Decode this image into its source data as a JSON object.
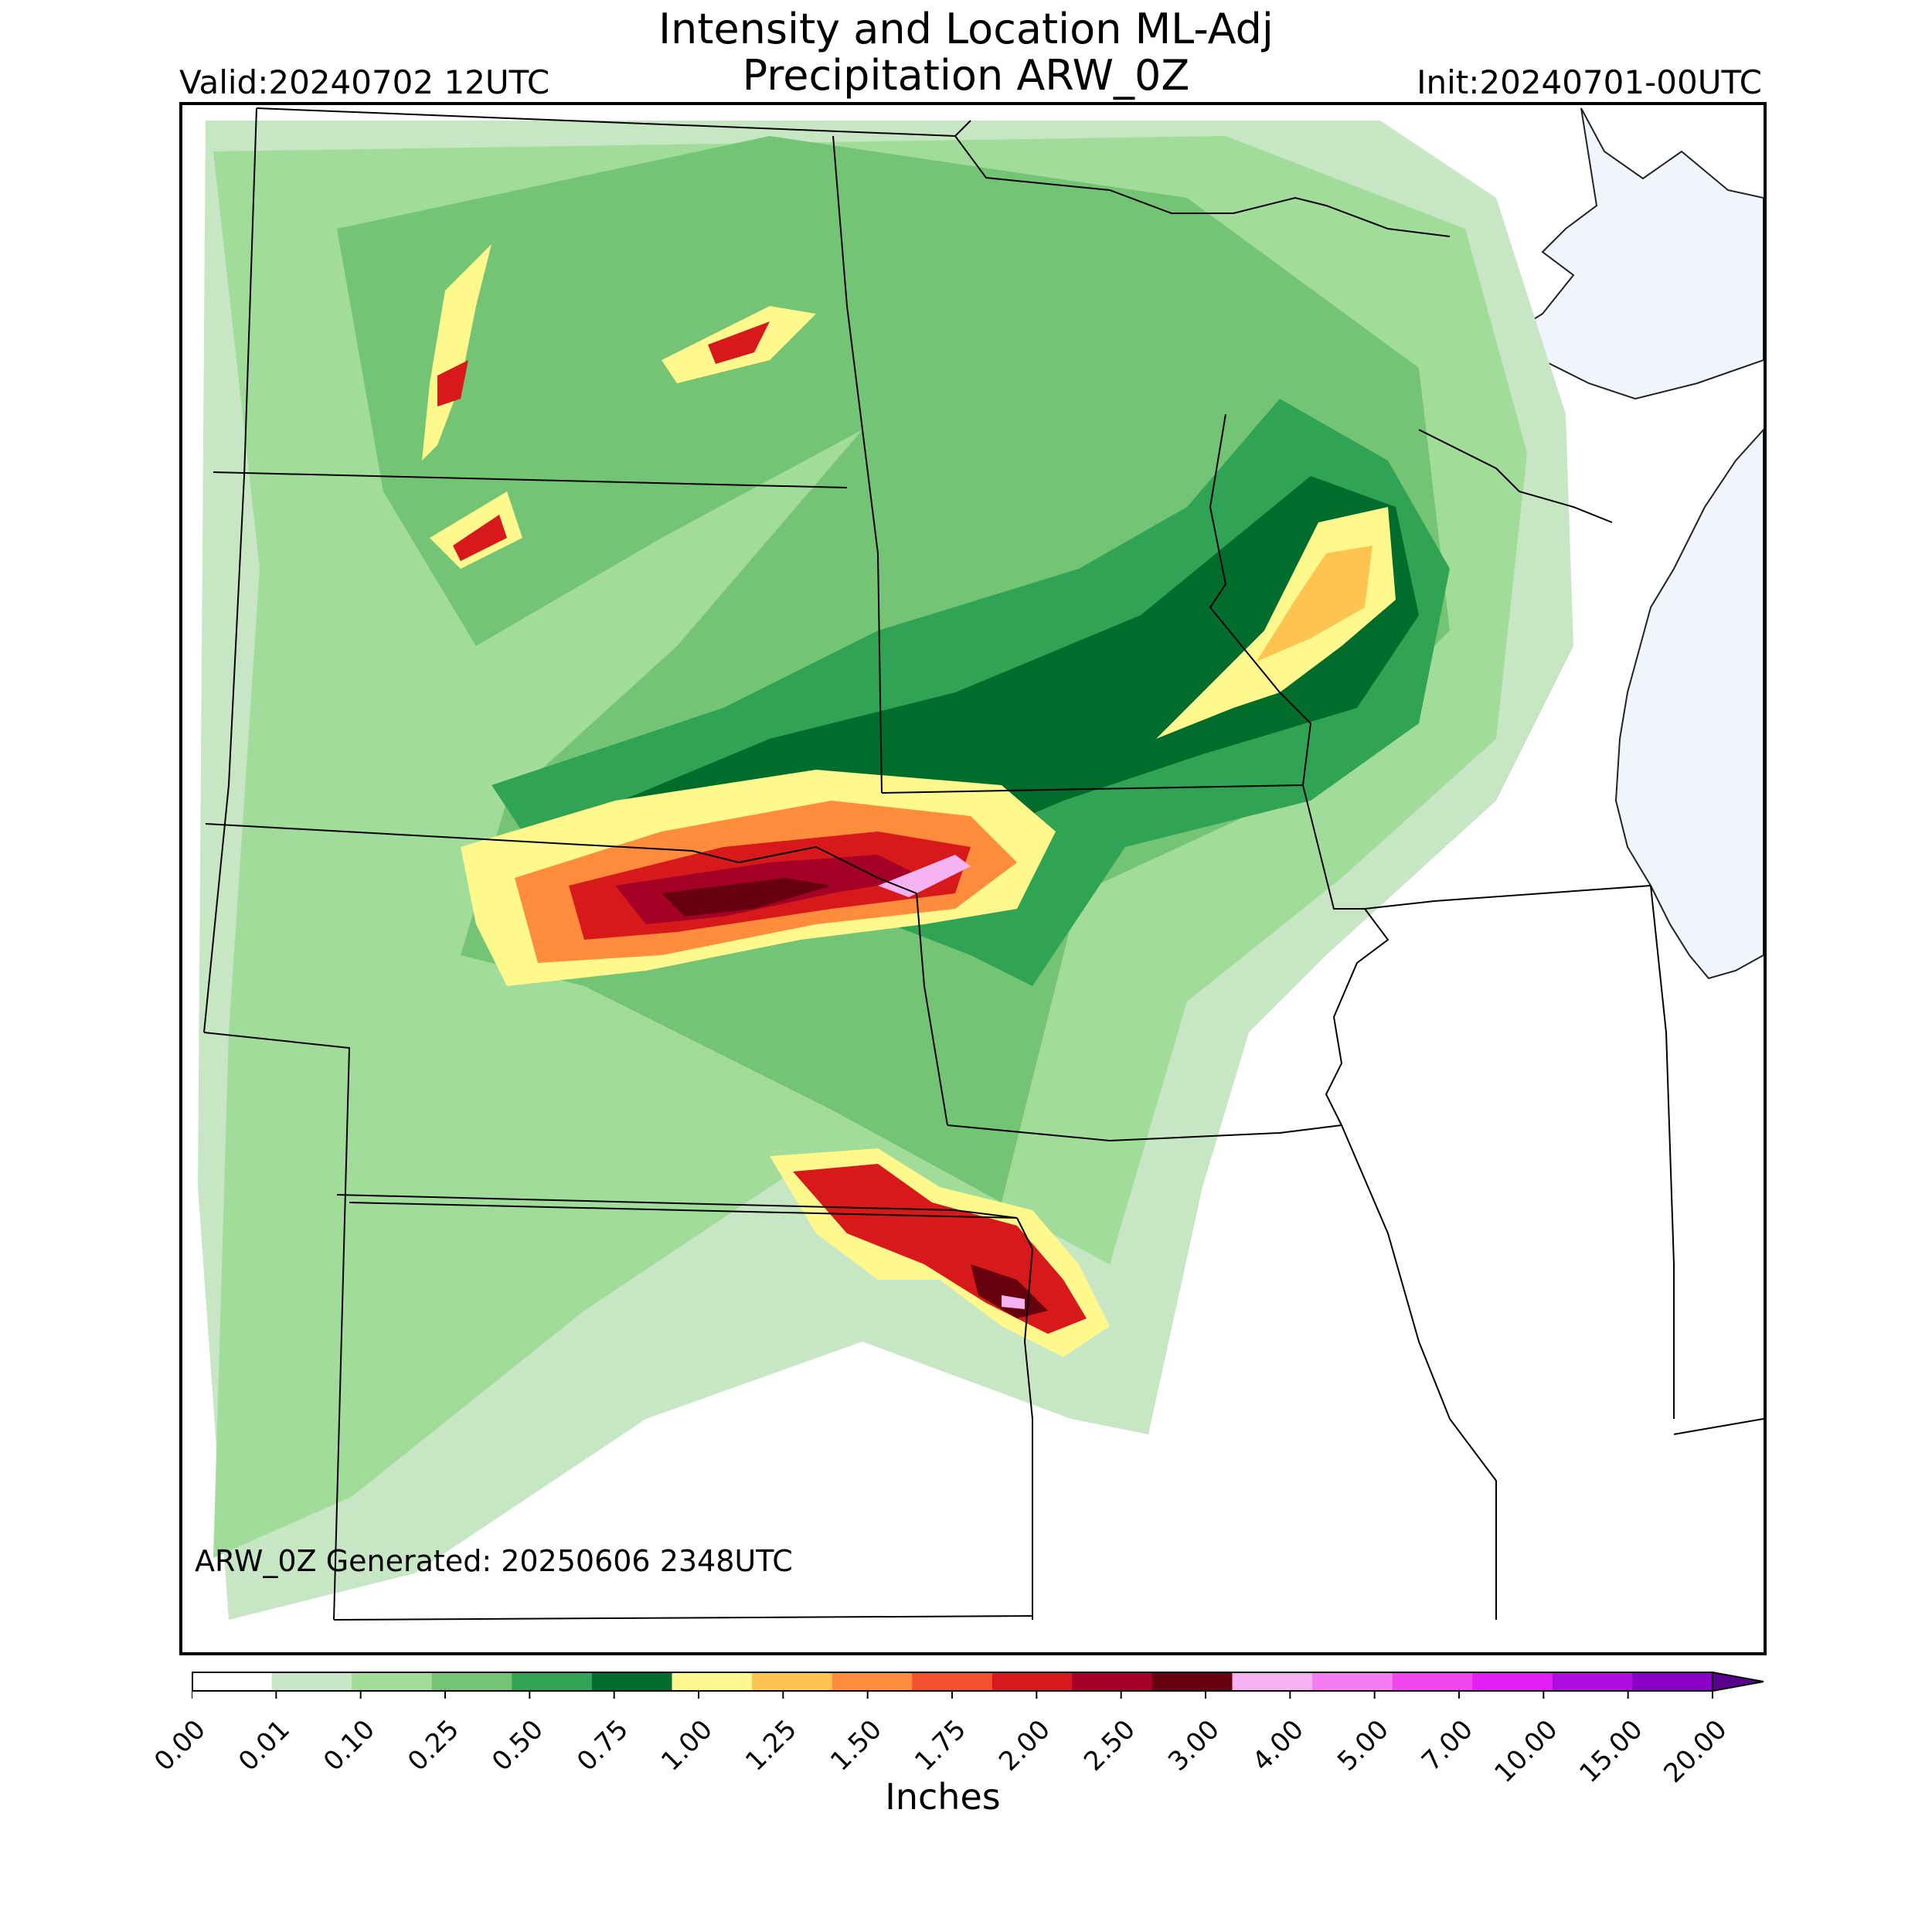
{
  "title": {
    "line1": "Intensity and Location ML-Adj",
    "line2": "Precipitation ARW_0Z"
  },
  "valid_label": "Valid:20240702 12UTC",
  "init_label": "Init:20240701-00UTC",
  "generated_label": "ARW_0Z Generated: 20250606 2348UTC",
  "colorbar": {
    "units": "Inches",
    "ticks": [
      "0.00",
      "0.01",
      "0.10",
      "0.25",
      "0.50",
      "0.75",
      "1.00",
      "1.25",
      "1.50",
      "1.75",
      "2.00",
      "2.50",
      "3.00",
      "4.00",
      "5.00",
      "7.00",
      "10.00",
      "15.00",
      "20.00"
    ],
    "colors": [
      "#ffffff",
      "#c7e6c3",
      "#a1dc9b",
      "#74c476",
      "#31a354",
      "#006d2c",
      "#fef88d",
      "#fec44f",
      "#fd8d3c",
      "#f45030",
      "#d7191c",
      "#a50026",
      "#67000d",
      "#f6b3f2",
      "#f57cf2",
      "#f046f0",
      "#e41ef2",
      "#b00ee0",
      "#8a00c8"
    ],
    "extend_color": "#5a0090"
  },
  "colors": {
    "lake": "#f0f4fb",
    "border": "#000000"
  }
}
